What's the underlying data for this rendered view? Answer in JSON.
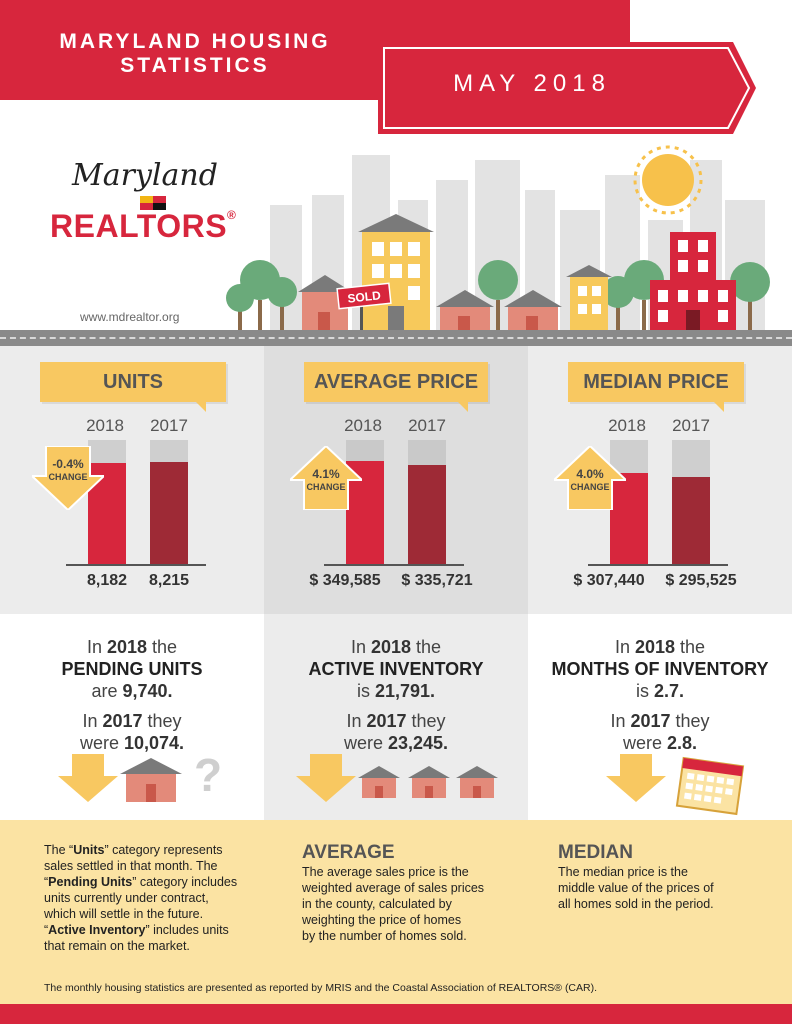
{
  "header": {
    "title_line1": "MARYLAND HOUSING",
    "title_line2": "STATISTICS",
    "date": "MAY 2018"
  },
  "logo": {
    "script": "Maryland",
    "brand": "REALTORS",
    "registered": "®",
    "url": "www.mdrealtor.org"
  },
  "illustration": {
    "sold_sign": "SOLD"
  },
  "colors": {
    "brand_red": "#d7263d",
    "bar_2018": "#d7263d",
    "bar_2017": "#9e2a36",
    "bar_cap": "#cfcfcf",
    "banner_yellow": "#f8c861",
    "footer_yellow": "#fbe3a3"
  },
  "chart_data": [
    {
      "type": "bar",
      "title": "UNITS",
      "categories": [
        "2018",
        "2017"
      ],
      "values": [
        8182,
        8215
      ],
      "value_labels": [
        "8,182",
        "8,215"
      ],
      "change": "-0.4%",
      "change_label": "CHANGE",
      "change_direction": "down",
      "ylim": [
        0,
        10000
      ]
    },
    {
      "type": "bar",
      "title": "AVERAGE PRICE",
      "categories": [
        "2018",
        "2017"
      ],
      "values": [
        349585,
        335721
      ],
      "value_labels": [
        "$ 349,585",
        "$ 335,721"
      ],
      "change": "4.1%",
      "change_label": "CHANGE",
      "change_direction": "up",
      "ylim": [
        0,
        420000
      ]
    },
    {
      "type": "bar",
      "title": "MEDIAN PRICE",
      "categories": [
        "2018",
        "2017"
      ],
      "values": [
        307440,
        295525
      ],
      "value_labels": [
        "$ 307,440",
        "$ 295,525"
      ],
      "change": "4.0%",
      "change_label": "CHANGE",
      "change_direction": "up",
      "ylim": [
        0,
        420000
      ]
    }
  ],
  "stats": [
    {
      "in_2018_prefix": "In",
      "in_2018_year": "2018",
      "in_2018_suffix": "the",
      "metric": "PENDING UNITS",
      "verb_2018": "are",
      "value_2018": "9,740.",
      "in_2017_prefix": "In",
      "in_2017_year": "2017",
      "in_2017_suffix": "they",
      "verb_2017": "were",
      "value_2017": "10,074."
    },
    {
      "in_2018_prefix": "In",
      "in_2018_year": "2018",
      "in_2018_suffix": "the",
      "metric": "ACTIVE INVENTORY",
      "verb_2018": "is",
      "value_2018": "21,791.",
      "in_2017_prefix": "In",
      "in_2017_year": "2017",
      "in_2017_suffix": "they",
      "verb_2017": "were",
      "value_2017": "23,245."
    },
    {
      "in_2018_prefix": "In",
      "in_2018_year": "2018",
      "in_2018_suffix": "the",
      "metric": "MONTHS OF INVENTORY",
      "verb_2018": "is",
      "value_2018": "2.7.",
      "in_2017_prefix": "In",
      "in_2017_year": "2017",
      "in_2017_suffix": "they",
      "verb_2017": "were",
      "value_2017": "2.8."
    }
  ],
  "icons": {
    "question": "?"
  },
  "footer": {
    "units_q1": "The “",
    "units_term": "Units",
    "units_q2": "” category represents",
    "units_line2": "sales settled in that month. The",
    "pending_q1": "“",
    "pending_term": "Pending Units",
    "pending_q2": "” category includes",
    "pending_line2": "units currently under contract,",
    "pending_line3": "which will settle in the future.",
    "active_q1": "“",
    "active_term": "Active Inventory",
    "active_q2": "” includes units",
    "active_line2": "that remain on the market.",
    "average_head": "AVERAGE",
    "average_lines": [
      "The average sales price is the",
      "weighted average of sales prices",
      "in the county, calculated by",
      "weighting the price of homes",
      "by the number of homes sold."
    ],
    "median_head": "MEDIAN",
    "median_lines": [
      "The median price is the",
      "middle value of the prices of",
      "all homes sold in the period."
    ],
    "note": "The monthly housing statistics are presented as reported by MRIS and the Coastal Association of REALTORS® (CAR)."
  }
}
